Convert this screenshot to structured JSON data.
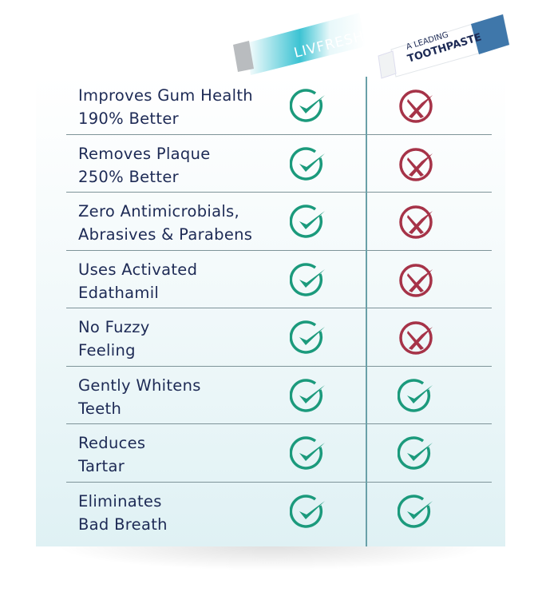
{
  "products": {
    "ours": {
      "brand": "LIVFRESH"
    },
    "theirs": {
      "line1": "A LEADING",
      "line2": "TOOTHPASTE"
    }
  },
  "colors": {
    "check": "#1b9a7c",
    "cross": "#a63348",
    "text": "#1d2a55",
    "divider": "#6aa0a8"
  },
  "rows": [
    {
      "label": "Improves Gum Health\n190% Better",
      "ours": "check",
      "theirs": "cross"
    },
    {
      "label": "Removes Plaque\n250% Better",
      "ours": "check",
      "theirs": "cross"
    },
    {
      "label": "Zero Antimicrobials,\nAbrasives & Parabens",
      "ours": "check",
      "theirs": "cross"
    },
    {
      "label": "Uses Activated\nEdathamil",
      "ours": "check",
      "theirs": "cross"
    },
    {
      "label": "No Fuzzy\nFeeling",
      "ours": "check",
      "theirs": "cross"
    },
    {
      "label": "Gently Whitens\nTeeth",
      "ours": "check",
      "theirs": "check"
    },
    {
      "label": "Reduces\nTartar",
      "ours": "check",
      "theirs": "check"
    },
    {
      "label": "Eliminates\nBad Breath",
      "ours": "check",
      "theirs": "check"
    }
  ]
}
